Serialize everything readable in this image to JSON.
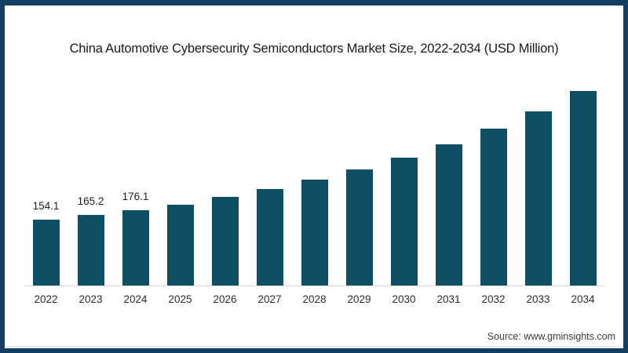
{
  "page": {
    "title": "China Automotive Cybersecurity Semiconductors Market Size, 2022-2034 (USD Million)",
    "source": "Source: www.gminsights.com"
  },
  "colors": {
    "bar": "#0d4f63",
    "frame": "#123e63",
    "axis_line": "#dcdcdc",
    "title_text": "#1a1a1a",
    "label_text": "#2d2d2d"
  },
  "chart_data": {
    "type": "bar",
    "title": "China Automotive Cybersecurity Semiconductors Market Size, 2022-2034 (USD Million)",
    "xlabel": "",
    "ylabel": "",
    "categories": [
      "2022",
      "2023",
      "2024",
      "2025",
      "2026",
      "2027",
      "2028",
      "2029",
      "2030",
      "2031",
      "2032",
      "2033",
      "2034"
    ],
    "values": [
      154.1,
      165.2,
      176.1,
      188.5,
      206.3,
      224.9,
      246.9,
      270.6,
      298.4,
      329.3,
      365.9,
      406.1,
      453.4
    ],
    "data_labels": [
      "154.1",
      "165.2",
      "176.1",
      "",
      "",
      "",
      "",
      "",
      "",
      "",
      "",
      "",
      ""
    ],
    "ylim": [
      0,
      460
    ],
    "grid": false,
    "legend": "none",
    "bar_color": "#0d4f63"
  }
}
